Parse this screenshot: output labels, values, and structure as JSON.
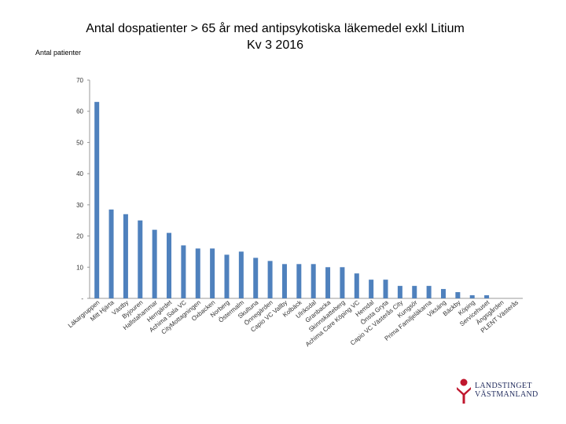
{
  "header": {
    "title_line1": "Antal dospatienter > 65 år med antipsykotiska läkemedel exkl Litium",
    "title_line2": "Kv 3  2016",
    "ylabel": "Antal patienter"
  },
  "logo": {
    "line1": "LANDSTINGET",
    "line2": "VÄSTMANLAND",
    "color": "#c0172e"
  },
  "chart_data": {
    "type": "bar",
    "title": "Antal dospatienter > 65 år med antipsykotiska läkemedel exkl Litium Kv 3  2016",
    "ylabel": "Antal patienter",
    "ylim": [
      0,
      70
    ],
    "yticks": [
      "-",
      "10",
      "20",
      "30",
      "40",
      "50",
      "60",
      "70"
    ],
    "bar_color": "#4f81bd",
    "categories": [
      "Läkargruppen",
      "Mitt Hjärta",
      "Västby",
      "Byjouren",
      "Hallstahammar",
      "Herrgärdet",
      "Achima Sala VC",
      "CityMottagningen",
      "Oxbacken",
      "Norberg",
      "Östermalm",
      "Skultuna",
      "Önnegärden",
      "Capio VC Vallby",
      "Kolbäck",
      "Ulriksdal",
      "Granbacka",
      "Skinnskatteberg",
      "Achima Care Köping VC",
      "Hemdal",
      "Önsta Gryta",
      "Capio VC Västerås City",
      "Kungsör",
      "Prima Familjeläkarna",
      "Viksäng",
      "Bäckby",
      "Köping",
      "Servicehuset",
      "Ängsgården",
      "PLENT Västerås"
    ],
    "category_labels": [
      "Läk ar gru ppen",
      "Mitt Hjärta",
      "Västby",
      "Byjouren",
      "Hallstaham mar",
      "Herrgärdet",
      "Achima Sala VC",
      "CityMottagn.",
      "Oxbacken",
      "Norberg",
      "Östermalm",
      "Skultuna",
      "Önnegärden",
      "Capio VC Vallby",
      "Kolbäck",
      "Ulriksdal",
      "Granbacka",
      "Skinnskatteberg",
      "Achima Care Köping VC",
      "Hemdal",
      "Önsta Gryta",
      "Capio VC Västerås City",
      "Kungsör",
      "Prima Familjeläkarna",
      "Viksäng",
      "Bäckby",
      "Köping",
      "Servicehuset",
      "Ängsgården",
      "PLENT Västerås"
    ],
    "values": [
      63,
      28.5,
      27,
      25,
      22,
      21,
      17,
      16,
      16,
      14,
      15,
      13,
      12,
      11,
      11,
      11,
      10,
      10,
      8,
      6,
      6,
      4,
      4,
      4,
      3,
      2,
      1,
      1,
      0,
      0
    ],
    "grid": true
  }
}
